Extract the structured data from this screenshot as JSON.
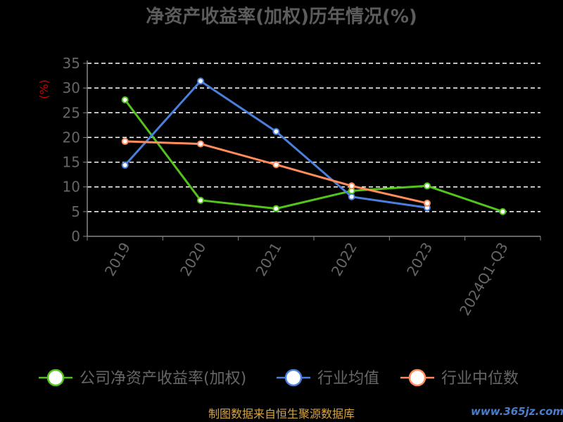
{
  "chart_data": {
    "type": "line",
    "title": "净资产收益率(加权)历年情况(%)",
    "ylabel": "(%)",
    "categories": [
      "2019",
      "2020",
      "2021",
      "2022",
      "2023",
      "2024Q1-Q3"
    ],
    "yticks": [
      "0",
      "5",
      "10",
      "15",
      "20",
      "25",
      "30",
      "35"
    ],
    "ylim": [
      0,
      35
    ],
    "grid": true,
    "legend_position": "bottom",
    "series": [
      {
        "name": "公司净资产收益率(加权)",
        "color": "#52c41a",
        "values": [
          27.6,
          7.3,
          5.6,
          9.2,
          10.2,
          5.0
        ]
      },
      {
        "name": "行业均值",
        "color": "#4a7fdc",
        "values": [
          14.4,
          31.4,
          21.2,
          8.0,
          5.8,
          null
        ]
      },
      {
        "name": "行业中位数",
        "color": "#ff8c5a",
        "values": [
          19.2,
          18.7,
          14.5,
          10.2,
          6.7,
          null
        ]
      }
    ]
  },
  "footer": {
    "source": "制图数据来自恒生聚源数据库",
    "watermark": "www.365jz.com"
  }
}
